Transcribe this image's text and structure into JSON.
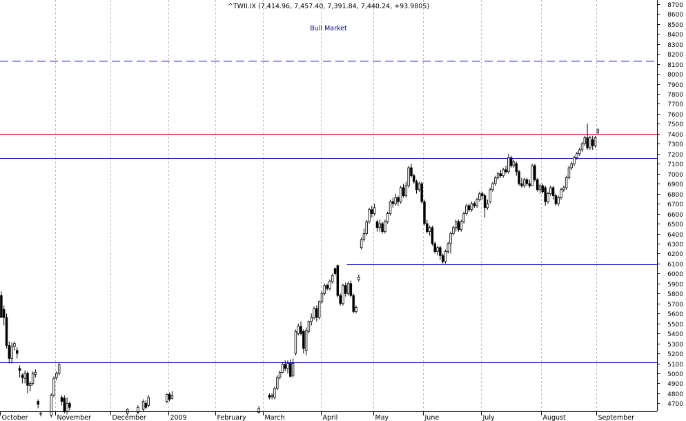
{
  "chart_data": {
    "type": "candlestick",
    "title": "^TWII.IX (7,414.96, 7,457.40, 7,391.84, 7,440.24, +93.9805)",
    "annotation": "Bull Market",
    "ylim": [
      4620,
      8740
    ],
    "yticks": [
      4700,
      4800,
      4900,
      5000,
      5100,
      5200,
      5300,
      5400,
      5500,
      5600,
      5700,
      5800,
      5900,
      6000,
      6100,
      6200,
      6300,
      6400,
      6500,
      6600,
      6700,
      6800,
      6900,
      7000,
      7100,
      7200,
      7300,
      7400,
      7500,
      7600,
      7700,
      7800,
      7900,
      8000,
      8100,
      8200,
      8300,
      8400,
      8500,
      8600,
      8700
    ],
    "months": [
      {
        "label": "October",
        "day": 0
      },
      {
        "label": "November",
        "day": 21
      },
      {
        "label": "December",
        "day": 42
      },
      {
        "label": "2009",
        "day": 64
      },
      {
        "label": "February",
        "day": 82
      },
      {
        "label": "March",
        "day": 100
      },
      {
        "label": "April",
        "day": 122
      },
      {
        "label": "May",
        "day": 142
      },
      {
        "label": "June",
        "day": 161
      },
      {
        "label": "July",
        "day": 183
      },
      {
        "label": "August",
        "day": 206
      },
      {
        "label": "September",
        "day": 227
      }
    ],
    "total_days": 250,
    "levels": [
      {
        "name": "dashed-resistance",
        "value": 8130,
        "color": "#0000cc",
        "dashed": true
      },
      {
        "name": "red-resistance",
        "value": 7400,
        "color": "#cc0000",
        "dashed": false
      },
      {
        "name": "blue-support-high",
        "value": 7160,
        "color": "#0000cc",
        "dashed": false
      },
      {
        "name": "blue-support-mid",
        "value": 6090,
        "color": "#0000cc",
        "dashed": false,
        "from_day": 132
      },
      {
        "name": "blue-support-low",
        "value": 5110,
        "color": "#0000cc",
        "dashed": false
      }
    ],
    "candles": [
      [
        0,
        5780,
        5560,
        5560,
        5820
      ],
      [
        1,
        5640,
        5560,
        5480,
        5680
      ],
      [
        2,
        5560,
        5280,
        5250,
        5600
      ],
      [
        3,
        5280,
        5150,
        5100,
        5320
      ],
      [
        4,
        5150,
        5270,
        5100,
        5310
      ],
      [
        5,
        5270,
        5300,
        5230,
        5320
      ],
      [
        6,
        5230,
        5200,
        5150,
        5260
      ],
      [
        7,
        5050,
        5030,
        4960,
        5080
      ],
      [
        8,
        4980,
        4960,
        4900,
        5000
      ],
      [
        9,
        4950,
        5000,
        4900,
        5030
      ],
      [
        10,
        5000,
        4880,
        4800,
        5020
      ],
      [
        11,
        4880,
        4900,
        4820,
        4920
      ],
      [
        12,
        4900,
        5000,
        4880,
        5020
      ],
      [
        13,
        4990,
        5010,
        4960,
        5040
      ],
      [
        14,
        4720,
        4690,
        4650,
        4740
      ],
      [
        15,
        4600,
        4600,
        4570,
        4620
      ],
      [
        19,
        4580,
        4780,
        4560,
        4800
      ],
      [
        20,
        4780,
        4950,
        4760,
        4970
      ],
      [
        21,
        4960,
        5000,
        4930,
        5020
      ],
      [
        22,
        5000,
        5090,
        4980,
        5100
      ],
      [
        23,
        4760,
        4720,
        4680,
        4780
      ],
      [
        24,
        4750,
        4620,
        4600,
        4780
      ],
      [
        25,
        4620,
        4700,
        4590,
        4760
      ],
      [
        26,
        4700,
        4660,
        4630,
        4720
      ],
      [
        48,
        4600,
        4640,
        4580,
        4650
      ],
      [
        52,
        4610,
        4660,
        4590,
        4680
      ],
      [
        54,
        4640,
        4720,
        4620,
        4740
      ],
      [
        55,
        4700,
        4660,
        4640,
        4730
      ],
      [
        56,
        4680,
        4760,
        4660,
        4780
      ],
      [
        63,
        4720,
        4790,
        4700,
        4800
      ],
      [
        64,
        4790,
        4740,
        4720,
        4810
      ],
      [
        65,
        4750,
        4780,
        4740,
        4820
      ],
      [
        98,
        4610,
        4650,
        4600,
        4670
      ],
      [
        102,
        4780,
        4760,
        4740,
        4800
      ],
      [
        103,
        4770,
        4780,
        4740,
        4800
      ],
      [
        104,
        4760,
        4850,
        4740,
        4870
      ],
      [
        105,
        4850,
        4960,
        4830,
        4980
      ],
      [
        106,
        4960,
        5010,
        4940,
        5030
      ],
      [
        107,
        5010,
        5090,
        5000,
        5110
      ],
      [
        108,
        5090,
        5050,
        5020,
        5130
      ],
      [
        109,
        5050,
        5100,
        5000,
        5130
      ],
      [
        110,
        5100,
        4970,
        4960,
        5140
      ],
      [
        111,
        4980,
        5100,
        4960,
        5150
      ],
      [
        112,
        5200,
        5420,
        5180,
        5440
      ],
      [
        113,
        5400,
        5470,
        5380,
        5500
      ],
      [
        114,
        5470,
        5400,
        5380,
        5520
      ],
      [
        115,
        5420,
        5250,
        5200,
        5440
      ],
      [
        116,
        5230,
        5430,
        5180,
        5460
      ],
      [
        117,
        5420,
        5520,
        5400,
        5530
      ],
      [
        118,
        5520,
        5560,
        5480,
        5600
      ],
      [
        119,
        5560,
        5650,
        5540,
        5670
      ],
      [
        120,
        5650,
        5560,
        5520,
        5680
      ],
      [
        121,
        5560,
        5720,
        5540,
        5730
      ],
      [
        122,
        5720,
        5800,
        5700,
        5820
      ],
      [
        123,
        5800,
        5880,
        5780,
        5900
      ],
      [
        124,
        5880,
        5850,
        5830,
        5900
      ],
      [
        125,
        5850,
        5920,
        5830,
        5940
      ],
      [
        126,
        5920,
        5980,
        5900,
        6000
      ],
      [
        127,
        6050,
        6000,
        5980,
        6060
      ],
      [
        128,
        6080,
        5780,
        5760,
        6090
      ],
      [
        129,
        5780,
        5700,
        5680,
        5800
      ],
      [
        130,
        5700,
        5880,
        5680,
        5900
      ],
      [
        131,
        5880,
        5800,
        5770,
        5910
      ],
      [
        132,
        5800,
        5900,
        5780,
        5920
      ],
      [
        133,
        5900,
        5780,
        5760,
        5930
      ],
      [
        134,
        5780,
        5620,
        5600,
        5800
      ],
      [
        135,
        5620,
        5660,
        5600,
        5680
      ],
      [
        136,
        5940,
        5960,
        5920,
        5990
      ],
      [
        137,
        6260,
        6340,
        6240,
        6360
      ],
      [
        138,
        6340,
        6400,
        6320,
        6450
      ],
      [
        139,
        6400,
        6520,
        6380,
        6540
      ],
      [
        140,
        6520,
        6640,
        6500,
        6660
      ],
      [
        141,
        6640,
        6600,
        6560,
        6680
      ],
      [
        142,
        6600,
        6660,
        6580,
        6700
      ],
      [
        143,
        6520,
        6460,
        6420,
        6540
      ],
      [
        144,
        6460,
        6500,
        6420,
        6540
      ],
      [
        145,
        6500,
        6420,
        6400,
        6520
      ],
      [
        146,
        6420,
        6520,
        6400,
        6540
      ],
      [
        147,
        6520,
        6600,
        6500,
        6620
      ],
      [
        148,
        6600,
        6720,
        6580,
        6740
      ],
      [
        149,
        6720,
        6700,
        6660,
        6760
      ],
      [
        150,
        6700,
        6760,
        6680,
        6800
      ],
      [
        151,
        6760,
        6720,
        6680,
        6780
      ],
      [
        152,
        6720,
        6860,
        6700,
        6880
      ],
      [
        153,
        6860,
        6780,
        6760,
        6900
      ],
      [
        154,
        6780,
        6880,
        6760,
        6920
      ],
      [
        155,
        6880,
        7060,
        6860,
        7080
      ],
      [
        156,
        7060,
        6980,
        6960,
        7100
      ],
      [
        157,
        6980,
        6920,
        6900,
        7000
      ],
      [
        158,
        6920,
        6840,
        6800,
        6940
      ],
      [
        159,
        6840,
        6900,
        6820,
        6920
      ],
      [
        160,
        6900,
        6720,
        6700,
        6920
      ],
      [
        161,
        6720,
        6500,
        6480,
        6740
      ],
      [
        162,
        6500,
        6420,
        6400,
        6540
      ],
      [
        163,
        6420,
        6460,
        6380,
        6480
      ],
      [
        164,
        6460,
        6300,
        6280,
        6480
      ],
      [
        165,
        6300,
        6220,
        6200,
        6320
      ],
      [
        166,
        6220,
        6260,
        6180,
        6280
      ],
      [
        167,
        6260,
        6180,
        6140,
        6280
      ],
      [
        168,
        6180,
        6120,
        6100,
        6200
      ],
      [
        169,
        6120,
        6220,
        6100,
        6240
      ],
      [
        170,
        6220,
        6300,
        6200,
        6320
      ],
      [
        171,
        6300,
        6400,
        6200,
        6420
      ],
      [
        172,
        6400,
        6460,
        6380,
        6480
      ],
      [
        173,
        6460,
        6520,
        6420,
        6540
      ],
      [
        174,
        6520,
        6440,
        6420,
        6540
      ],
      [
        175,
        6440,
        6520,
        6420,
        6540
      ],
      [
        176,
        6520,
        6600,
        6500,
        6620
      ],
      [
        177,
        6600,
        6680,
        6580,
        6700
      ],
      [
        178,
        6680,
        6640,
        6620,
        6700
      ],
      [
        179,
        6640,
        6700,
        6620,
        6720
      ],
      [
        180,
        6700,
        6680,
        6660,
        6720
      ],
      [
        181,
        6680,
        6740,
        6660,
        6760
      ],
      [
        182,
        6740,
        6800,
        6720,
        6820
      ],
      [
        183,
        6800,
        6780,
        6740,
        6820
      ],
      [
        184,
        6780,
        6660,
        6560,
        6800
      ],
      [
        185,
        6660,
        6700,
        6640,
        6740
      ],
      [
        186,
        6720,
        6840,
        6700,
        6860
      ],
      [
        187,
        6840,
        6900,
        6820,
        6920
      ],
      [
        188,
        6900,
        6960,
        6880,
        6980
      ],
      [
        189,
        6960,
        7000,
        6940,
        7020
      ],
      [
        190,
        7000,
        6980,
        6960,
        7040
      ],
      [
        191,
        6980,
        7040,
        6960,
        7060
      ],
      [
        192,
        7040,
        7020,
        7000,
        7080
      ],
      [
        193,
        7020,
        7160,
        7000,
        7200
      ],
      [
        194,
        7160,
        7080,
        7060,
        7180
      ],
      [
        195,
        7080,
        7120,
        7060,
        7140
      ],
      [
        196,
        7100,
        7020,
        6980,
        7120
      ],
      [
        197,
        7020,
        6900,
        6880,
        7040
      ],
      [
        198,
        6900,
        6880,
        6860,
        6960
      ],
      [
        199,
        6880,
        6940,
        6860,
        6960
      ],
      [
        200,
        6940,
        6900,
        6880,
        6960
      ],
      [
        201,
        6900,
        6880,
        6860,
        6940
      ],
      [
        202,
        6880,
        7080,
        6880,
        7100
      ],
      [
        203,
        7080,
        6940,
        6920,
        7100
      ],
      [
        204,
        6940,
        6840,
        6820,
        6960
      ],
      [
        205,
        6840,
        6880,
        6800,
        6900
      ],
      [
        206,
        6880,
        6820,
        6800,
        6900
      ],
      [
        207,
        6860,
        6720,
        6680,
        6880
      ],
      [
        208,
        6720,
        6800,
        6700,
        6820
      ],
      [
        209,
        6800,
        6860,
        6780,
        6880
      ],
      [
        210,
        6860,
        6780,
        6740,
        6880
      ],
      [
        211,
        6780,
        6700,
        6680,
        6800
      ],
      [
        212,
        6700,
        6760,
        6680,
        6780
      ],
      [
        213,
        6760,
        6840,
        6740,
        6860
      ],
      [
        214,
        6840,
        6860,
        6820,
        6880
      ],
      [
        215,
        6860,
        6960,
        6840,
        6980
      ],
      [
        216,
        6960,
        7060,
        6940,
        7080
      ],
      [
        217,
        7060,
        7100,
        7040,
        7120
      ],
      [
        218,
        7100,
        7160,
        7080,
        7180
      ],
      [
        219,
        7160,
        7200,
        7140,
        7220
      ],
      [
        220,
        7200,
        7240,
        7180,
        7260
      ],
      [
        221,
        7240,
        7300,
        7220,
        7320
      ],
      [
        222,
        7300,
        7360,
        7280,
        7380
      ],
      [
        223,
        7360,
        7260,
        7240,
        7500
      ],
      [
        224,
        7260,
        7360,
        7240,
        7380
      ],
      [
        225,
        7340,
        7280,
        7240,
        7380
      ],
      [
        226,
        7280,
        7360,
        7260,
        7380
      ],
      [
        227,
        7415,
        7440,
        7392,
        7457
      ]
    ]
  }
}
